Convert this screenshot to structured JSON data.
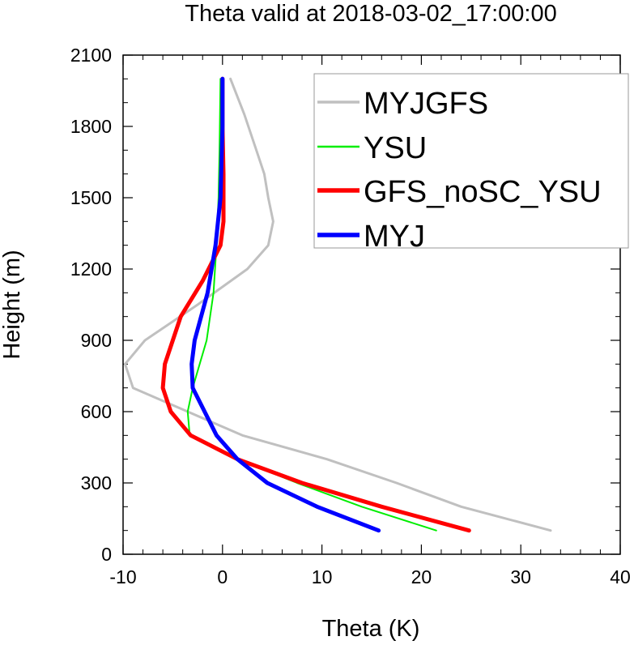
{
  "chart_data": {
    "type": "line",
    "title": "Theta valid at 2018-03-02_17:00:00",
    "xlabel": "Theta (K)",
    "ylabel": "Height (m)",
    "xlim": [
      -10,
      40
    ],
    "ylim": [
      0,
      2100
    ],
    "xticks": [
      -10,
      0,
      10,
      20,
      30,
      40
    ],
    "yticks": [
      0,
      300,
      600,
      900,
      1200,
      1500,
      1800,
      2100
    ],
    "xtick_labels": [
      "-10",
      "0",
      "10",
      "20",
      "30",
      "40"
    ],
    "ytick_labels": [
      "0",
      "300",
      "600",
      "900",
      "1200",
      "1500",
      "1800",
      "2100"
    ],
    "legend_position": "top-right",
    "series": [
      {
        "name": "MYJGFS",
        "color": "#c0c0c0",
        "width": 3,
        "x": [
          33.0,
          24.0,
          17.5,
          10.5,
          2.0,
          -3.5,
          -9.0,
          -9.8,
          -7.8,
          -2.5,
          2.5,
          4.6,
          5.1,
          4.6,
          4.2,
          3.4,
          2.2,
          0.8
        ],
        "y": [
          100,
          200,
          300,
          400,
          500,
          600,
          700,
          800,
          900,
          1050,
          1200,
          1300,
          1400,
          1500,
          1600,
          1700,
          1850,
          2000
        ]
      },
      {
        "name": "YSU",
        "color": "#00ee00",
        "width": 2,
        "x": [
          21.5,
          14.0,
          7.5,
          1.5,
          -3.3,
          -3.5,
          -3.0,
          -2.3,
          -1.6,
          -0.9,
          -0.6,
          -0.4,
          -0.3,
          -0.2
        ],
        "y": [
          100,
          200,
          300,
          400,
          500,
          600,
          700,
          800,
          900,
          1100,
          1300,
          1500,
          1700,
          2000
        ]
      },
      {
        "name": "GFS_noSC_YSU",
        "color": "#ff0000",
        "width": 5,
        "x": [
          24.8,
          16.0,
          8.0,
          1.5,
          -3.2,
          -5.2,
          -6.0,
          -5.8,
          -4.2,
          -2.0,
          -0.2,
          0.1,
          0.1,
          0.0,
          0.0
        ],
        "y": [
          100,
          200,
          300,
          400,
          500,
          600,
          700,
          800,
          1000,
          1150,
          1300,
          1400,
          1600,
          1800,
          2000
        ]
      },
      {
        "name": "MYJ",
        "color": "#0000ff",
        "width": 5,
        "x": [
          15.7,
          9.5,
          4.5,
          1.5,
          -0.6,
          -1.8,
          -3.0,
          -3.1,
          -2.8,
          -1.5,
          -0.7,
          -0.2,
          0.0,
          0.0
        ],
        "y": [
          100,
          200,
          300,
          400,
          500,
          600,
          700,
          800,
          900,
          1100,
          1300,
          1500,
          1800,
          2000
        ]
      }
    ]
  }
}
